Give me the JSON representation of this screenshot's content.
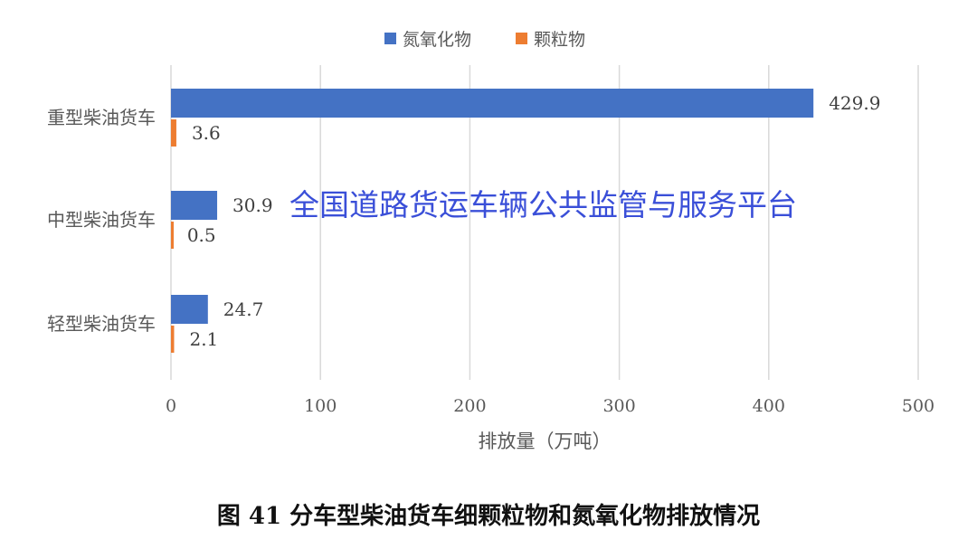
{
  "chart_data": {
    "type": "bar",
    "orientation": "horizontal",
    "categories": [
      "重型柴油货车",
      "中型柴油货车",
      "轻型柴油货车"
    ],
    "series": [
      {
        "name": "氮氧化物",
        "color": "#4472c4",
        "values": [
          429.9,
          30.9,
          24.7
        ]
      },
      {
        "name": "颗粒物",
        "color": "#ed7d31",
        "values": [
          3.6,
          0.5,
          2.1
        ]
      }
    ],
    "xlabel": "排放量（万吨）",
    "xlim": [
      0,
      500
    ],
    "xticks": [
      0,
      100,
      200,
      300,
      400,
      500
    ],
    "grid": true,
    "legend": "top"
  },
  "watermark": "全国道路货运车辆公共监管与服务平台",
  "caption": "图 41   分车型柴油货车细颗粒物和氮氧化物排放情况"
}
